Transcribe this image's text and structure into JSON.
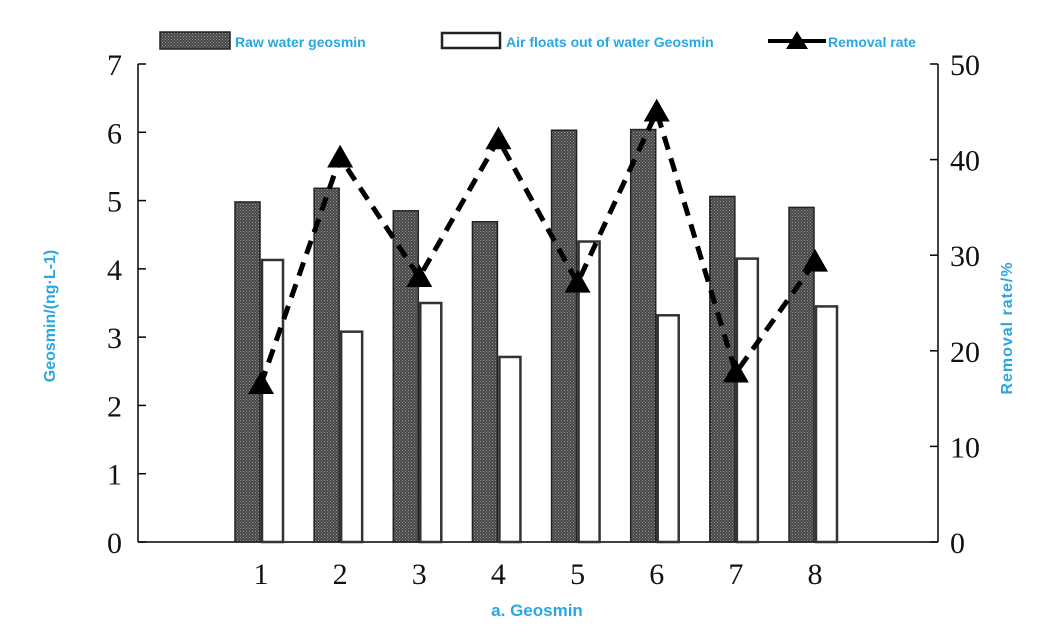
{
  "chart_data": {
    "type": "bar",
    "categories": [
      "1",
      "2",
      "3",
      "4",
      "5",
      "6",
      "7",
      "8"
    ],
    "series": [
      {
        "name": "Raw water geosmin",
        "type": "bar",
        "axis": "left",
        "values": [
          4.98,
          5.18,
          4.85,
          4.69,
          6.03,
          6.04,
          5.06,
          4.9
        ]
      },
      {
        "name": "Air floats out of water Geosmin",
        "type": "bar",
        "axis": "left",
        "values": [
          4.13,
          3.08,
          3.5,
          2.71,
          4.4,
          3.32,
          4.15,
          3.45
        ]
      },
      {
        "name": "Removal rate",
        "type": "line",
        "axis": "right",
        "values": [
          16.5,
          40.2,
          27.7,
          42.1,
          27.1,
          45.0,
          17.7,
          29.3
        ]
      }
    ],
    "xlabel": "a. Geosmin",
    "ylabel": "Geosmin/(ng·L-1)",
    "y2label": "Removal rate/%",
    "ylim": [
      0,
      7
    ],
    "y2lim": [
      0,
      50
    ],
    "yticks": [
      "0",
      "1",
      "2",
      "3",
      "4",
      "5",
      "6",
      "7"
    ],
    "y2ticks": [
      "0",
      "10",
      "20",
      "30",
      "40",
      "50"
    ],
    "grid": false,
    "legend_position": "top",
    "colors": {
      "label_text": "#29a7e1",
      "raw_bar": "#4a4a4a",
      "float_bar_fill": "#ffffff",
      "line": "#000000"
    }
  }
}
